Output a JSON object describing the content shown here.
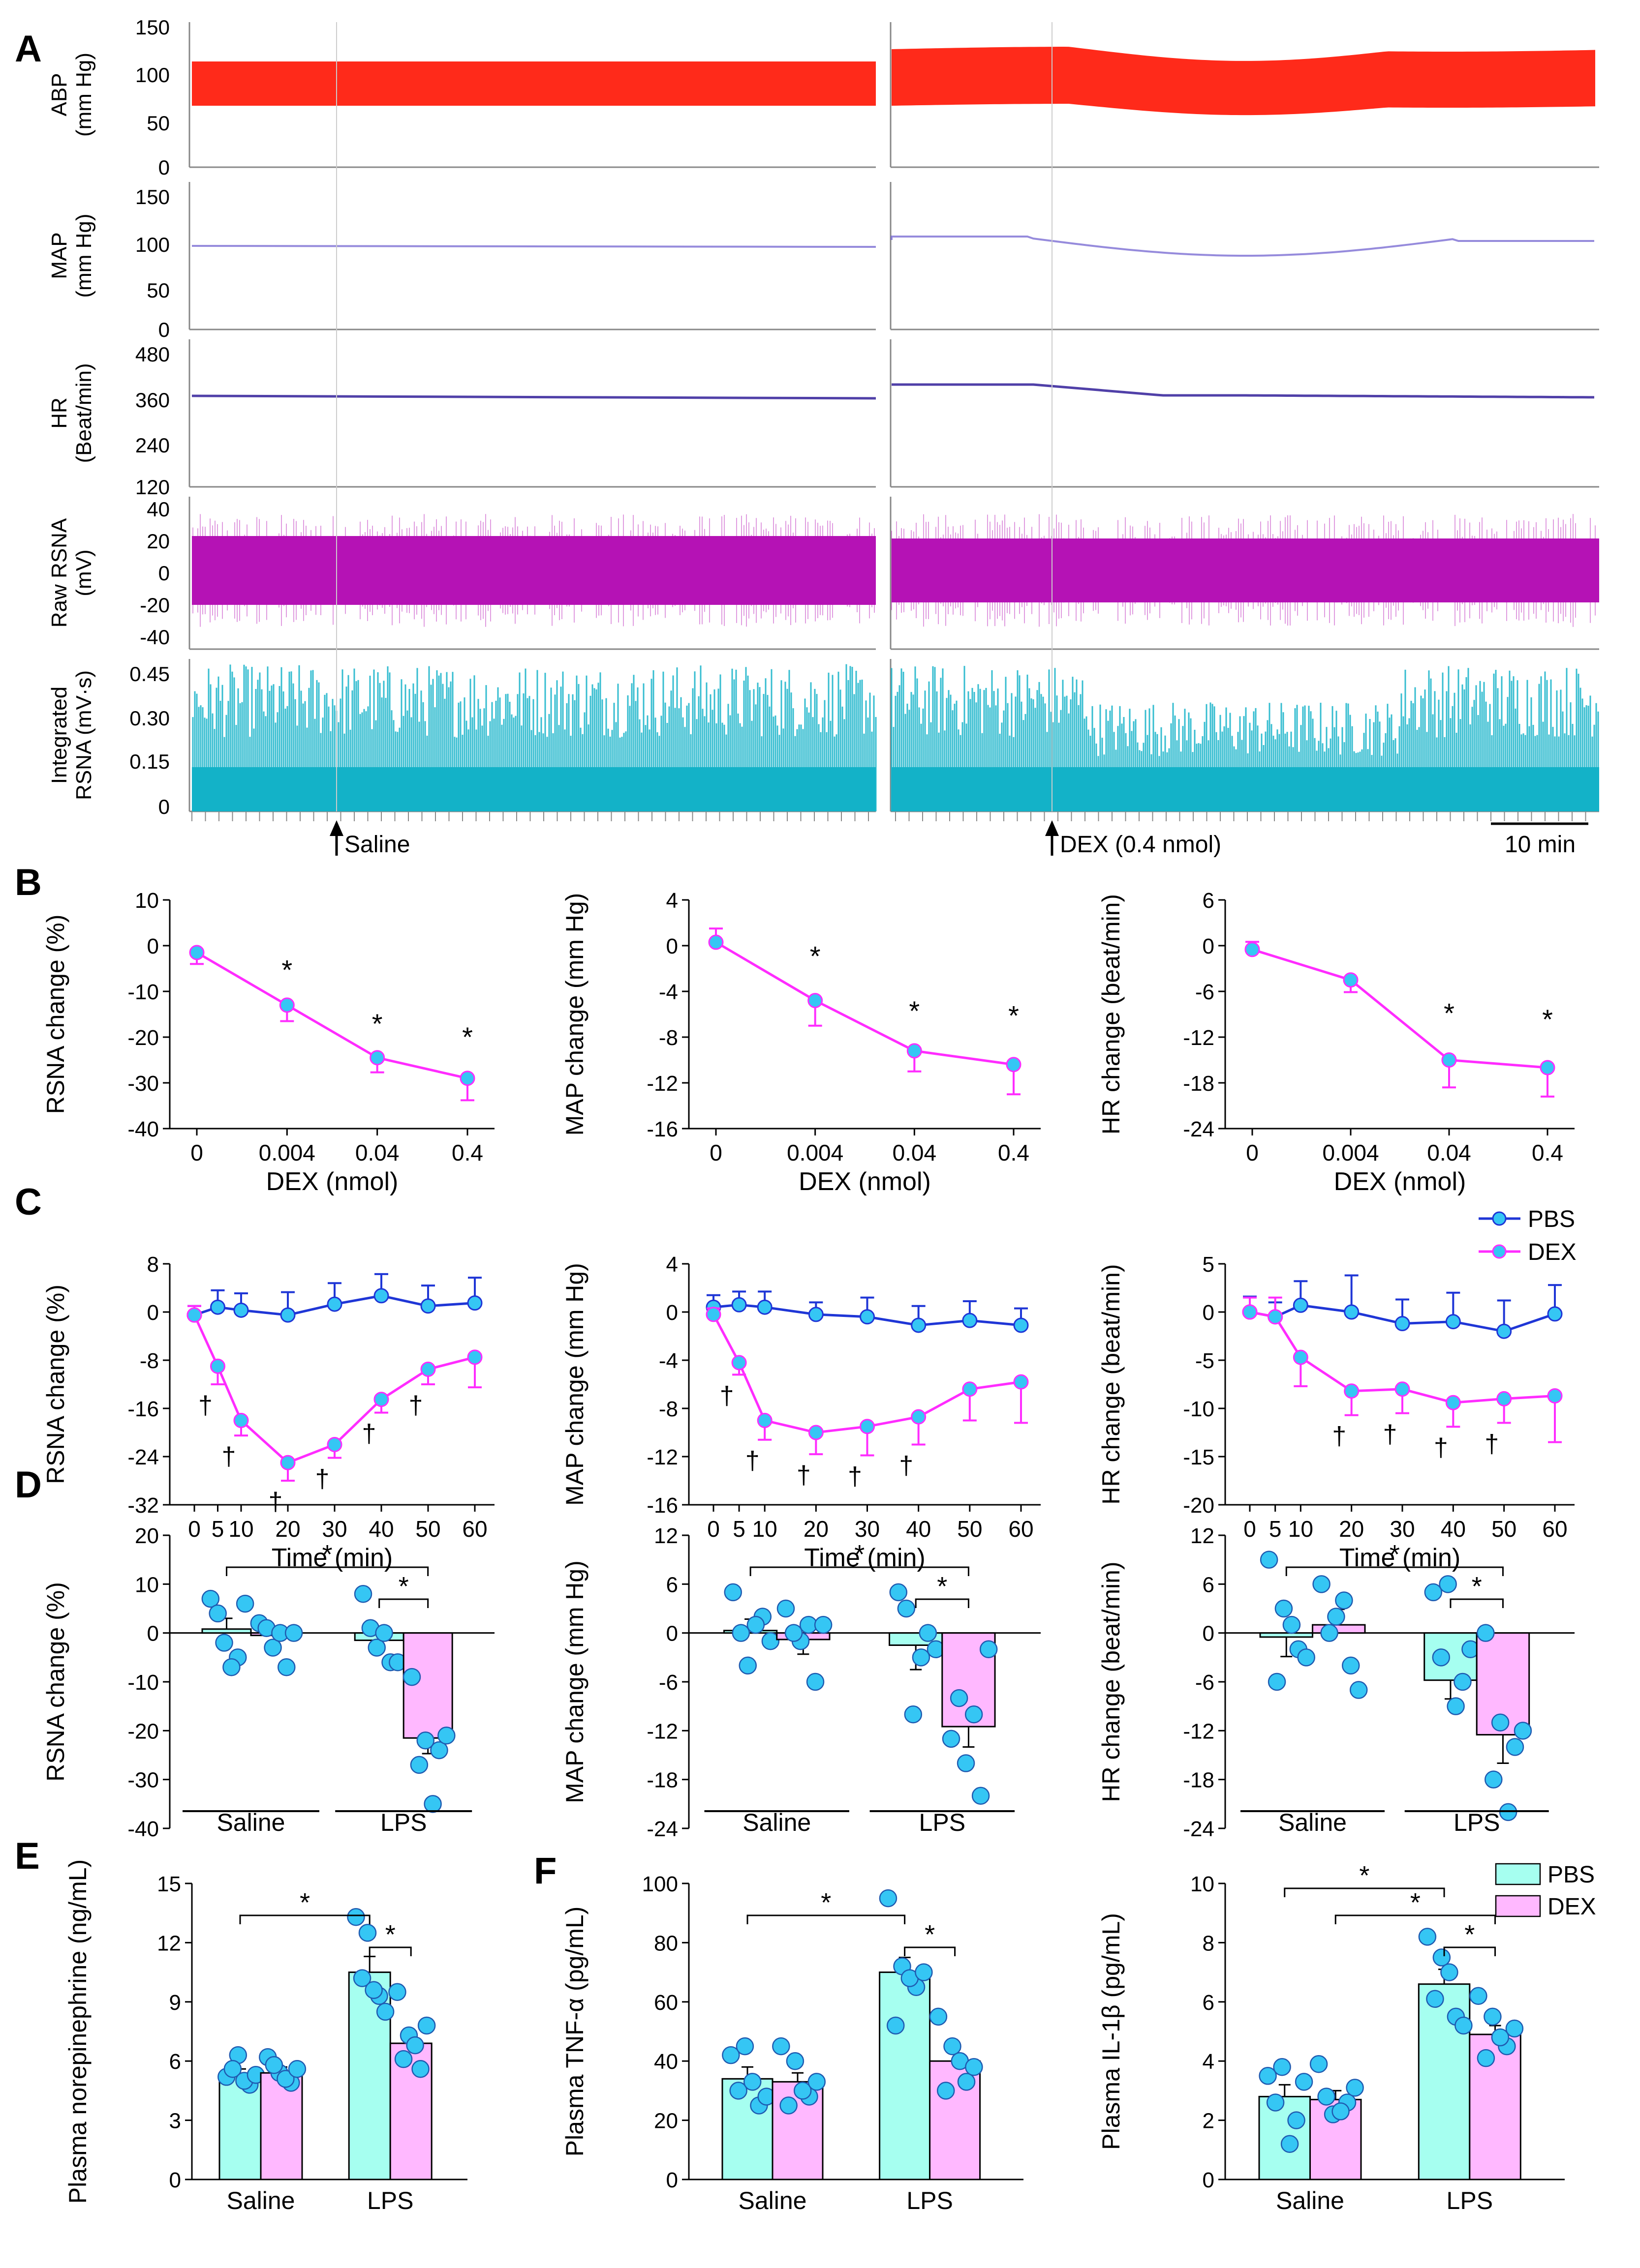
{
  "figure": {
    "panel_letters": {
      "A": "A",
      "B": "B",
      "C": "C",
      "D": "D",
      "E": "E",
      "F": "F"
    },
    "colors": {
      "abp": "#ff2a1a",
      "map": "#6a5acd",
      "hr": "#5040a8",
      "raw_rsna": "#b512b5",
      "int_rsna": "#13b2c8",
      "pbs_line": "#1f36d6",
      "dex_line": "#ff2cff",
      "marker_fill": "#35c6f4",
      "pbs_bar": "#a6fff0",
      "dex_bar": "#ffb8ff"
    },
    "legend_lines": {
      "pbs": "PBS",
      "dex": "DEX"
    },
    "legend_bars": {
      "pbs": "PBS",
      "dex": "DEX"
    }
  },
  "panelA": {
    "traces": [
      {
        "key": "abp",
        "label_lines": [
          "ABP",
          "(mm Hg)"
        ],
        "ticks": [
          "150",
          "100",
          "50",
          "0"
        ],
        "ylim": [
          0,
          150
        ]
      },
      {
        "key": "map",
        "label_lines": [
          "MAP",
          "(mm Hg)"
        ],
        "ticks": [
          "150",
          "100",
          "50",
          "0"
        ],
        "ylim": [
          0,
          150
        ]
      },
      {
        "key": "hr",
        "label_lines": [
          "HR",
          "(Beat/min)"
        ],
        "ticks": [
          "480",
          "360",
          "240",
          "120"
        ],
        "ylim": [
          120,
          480
        ]
      },
      {
        "key": "raw_rsna",
        "label_lines": [
          "Raw RSNA",
          "(mV)"
        ],
        "ticks": [
          "40",
          "20",
          "0",
          "-20",
          "-40"
        ],
        "ylim": [
          -40,
          40
        ]
      },
      {
        "key": "int_rsna",
        "label_lines": [
          "Integrated",
          "RSNA (mV·s)"
        ],
        "ticks": [
          "0.45",
          "0.30",
          "0.15",
          "0"
        ],
        "ylim": [
          0,
          0.45
        ]
      }
    ],
    "markers": {
      "saline": "Saline",
      "dex": "DEX (0.4 nmol)"
    },
    "scalebar": "10 min"
  },
  "chart_data": [
    {
      "panel": "B",
      "type": "line",
      "xlabel": "DEX (nmol)",
      "ylabel": "RSNA change (%)",
      "categories": [
        "0",
        "0.004",
        "0.04",
        "0.4"
      ],
      "ylim": [
        -40,
        10
      ],
      "yticks": [
        "10",
        "0",
        "-10",
        "-20",
        "-30",
        "-40"
      ],
      "series": [
        {
          "name": "DEX",
          "values": [
            -1.5,
            -13,
            -24.5,
            -29
          ],
          "errors": [
            2.5,
            3.5,
            3.2,
            4.8
          ]
        }
      ],
      "annotations": [
        "",
        "*",
        "*",
        "*"
      ]
    },
    {
      "panel": "B",
      "type": "line",
      "xlabel": "DEX (nmol)",
      "ylabel": "MAP change (mm Hg)",
      "categories": [
        "0",
        "0.004",
        "0.04",
        "0.4"
      ],
      "ylim": [
        -16,
        4
      ],
      "yticks": [
        "4",
        "0",
        "-4",
        "-8",
        "-12",
        "-16"
      ],
      "series": [
        {
          "name": "DEX",
          "values": [
            0.3,
            -4.8,
            -9.2,
            -10.4
          ],
          "errors": [
            1.2,
            2.2,
            1.8,
            2.6
          ]
        }
      ],
      "annotations": [
        "",
        "*",
        "*",
        "*"
      ]
    },
    {
      "panel": "B",
      "type": "line",
      "xlabel": "DEX (nmol)",
      "ylabel": "HR change (beat/min)",
      "categories": [
        "0",
        "0.004",
        "0.04",
        "0.4"
      ],
      "ylim": [
        -24,
        6
      ],
      "yticks": [
        "6",
        "0",
        "-6",
        "-12",
        "-18",
        "-24"
      ],
      "series": [
        {
          "name": "DEX",
          "values": [
            -0.5,
            -4.5,
            -15,
            -16
          ],
          "errors": [
            1,
            1.6,
            3.6,
            3.8
          ]
        }
      ],
      "annotations": [
        "",
        "",
        "*",
        "*"
      ]
    },
    {
      "panel": "C",
      "type": "line",
      "xlabel": "Time (min)",
      "ylabel": "RSNA change (%)",
      "x": [
        0,
        5,
        10,
        20,
        30,
        40,
        50,
        60
      ],
      "ylim": [
        -32,
        8
      ],
      "yticks": [
        "8",
        "0",
        "-8",
        "-16",
        "-24",
        "-32"
      ],
      "series": [
        {
          "name": "PBS",
          "values": [
            -0.5,
            0.8,
            0.3,
            -0.5,
            1.3,
            2.7,
            1,
            1.5
          ],
          "errors": [
            1.5,
            2.8,
            2.8,
            3.8,
            3.5,
            3.6,
            3.4,
            4.2
          ]
        },
        {
          "name": "DEX",
          "values": [
            -0.5,
            -9,
            -18,
            -25,
            -22,
            -14.5,
            -9.5,
            -7.5
          ],
          "errors": [
            1.5,
            3,
            2.5,
            3,
            2.2,
            2.2,
            2.5,
            5
          ]
        }
      ],
      "annotations": [
        "",
        "†",
        "†",
        "†",
        "†",
        "†",
        "†",
        ""
      ]
    },
    {
      "panel": "C",
      "type": "line",
      "xlabel": "Time (min)",
      "ylabel": "MAP change (mm Hg)",
      "x": [
        0,
        5,
        10,
        20,
        30,
        40,
        50,
        60
      ],
      "ylim": [
        -16,
        4
      ],
      "yticks": [
        "4",
        "0",
        "-4",
        "-8",
        "-12",
        "-16"
      ],
      "series": [
        {
          "name": "PBS",
          "values": [
            0.4,
            0.6,
            0.4,
            -0.2,
            -0.4,
            -1.1,
            -0.7,
            -1.1
          ],
          "errors": [
            1,
            1.1,
            1.3,
            1,
            1.6,
            1.6,
            1.6,
            1.4
          ]
        },
        {
          "name": "DEX",
          "values": [
            -0.2,
            -4.2,
            -9,
            -10,
            -9.5,
            -8.7,
            -6.4,
            -5.8
          ],
          "errors": [
            0.5,
            1,
            1.6,
            1.8,
            2.4,
            2.3,
            2.6,
            3.4
          ]
        }
      ],
      "annotations": [
        "",
        "†",
        "†",
        "†",
        "†",
        "†",
        "",
        ""
      ]
    },
    {
      "panel": "C",
      "type": "line",
      "xlabel": "Time (min)",
      "ylabel": "HR change (beat/min)",
      "x": [
        0,
        5,
        10,
        20,
        30,
        40,
        50,
        60
      ],
      "ylim": [
        -20,
        5
      ],
      "yticks": [
        "5",
        "0",
        "-5",
        "-10",
        "-15",
        "-20"
      ],
      "series": [
        {
          "name": "PBS",
          "values": [
            0,
            -0.5,
            0.7,
            0,
            -1.2,
            -1,
            -2,
            -0.2
          ],
          "errors": [
            1.6,
            1.5,
            2.5,
            3.8,
            2.5,
            3,
            3.2,
            3
          ]
        },
        {
          "name": "DEX",
          "values": [
            0,
            -0.5,
            -4.7,
            -8.2,
            -8,
            -9.4,
            -9,
            -8.7
          ],
          "errors": [
            1.5,
            2,
            3,
            2.5,
            2.5,
            2.5,
            2.5,
            4.8
          ]
        }
      ],
      "annotations": [
        "",
        "",
        "",
        "†",
        "†",
        "†",
        "†",
        ""
      ]
    },
    {
      "panel": "D",
      "type": "bar",
      "ylabel": "RSNA change (%)",
      "categories": [
        "Saline",
        "LPS"
      ],
      "ylim": [
        -40,
        20
      ],
      "yticks": [
        "20",
        "10",
        "0",
        "-10",
        "-20",
        "-30",
        "-40"
      ],
      "series": [
        {
          "name": "PBS",
          "values": [
            0.8,
            -1.5
          ],
          "errors": [
            2.2,
            2
          ],
          "points": [
            [
              7,
              -2,
              -5,
              4,
              -7,
              6
            ],
            [
              8,
              -3,
              -6,
              1,
              0,
              -6
            ]
          ]
        },
        {
          "name": "DEX",
          "values": [
            -0.5,
            -21.5
          ],
          "errors": [
            2,
            3.2
          ],
          "points": [
            [
              2,
              -3,
              -7,
              1,
              0,
              0
            ],
            [
              -9,
              -22,
              -24,
              -27,
              -35,
              -21
            ]
          ]
        }
      ],
      "brackets": [
        {
          "label": "*",
          "from": "Saline-PBS",
          "to": "LPS-DEX",
          "level": 1
        },
        {
          "label": "*",
          "from": "LPS-PBS",
          "to": "LPS-DEX",
          "level": 0
        }
      ]
    },
    {
      "panel": "D",
      "type": "bar",
      "ylabel": "MAP change (mm Hg)",
      "categories": [
        "Saline",
        "LPS"
      ],
      "ylim": [
        -24,
        12
      ],
      "yticks": [
        "12",
        "6",
        "0",
        "-6",
        "-12",
        "-18",
        "-24"
      ],
      "series": [
        {
          "name": "PBS",
          "values": [
            0.3,
            -1.5
          ],
          "errors": [
            1.4,
            3
          ],
          "points": [
            [
              5,
              -4,
              2,
              0,
              1,
              -1
            ],
            [
              5,
              -10,
              0,
              3,
              -3,
              -2
            ]
          ]
        },
        {
          "name": "DEX",
          "values": [
            -0.8,
            -11.5
          ],
          "errors": [
            1.8,
            2.5
          ],
          "points": [
            [
              3,
              -1,
              -6,
              0,
              1,
              1
            ],
            [
              -13,
              -16,
              -20,
              -8,
              -10,
              -2
            ]
          ]
        }
      ],
      "brackets": [
        {
          "label": "*",
          "from": "Saline-PBS",
          "to": "LPS-DEX",
          "level": 1
        },
        {
          "label": "*",
          "from": "LPS-PBS",
          "to": "LPS-DEX",
          "level": 0
        }
      ]
    },
    {
      "panel": "D",
      "type": "bar",
      "ylabel": "HR change (beat/min)",
      "categories": [
        "Saline",
        "LPS"
      ],
      "ylim": [
        -24,
        12
      ],
      "yticks": [
        "12",
        "6",
        "0",
        "-6",
        "-12",
        "-18",
        "-24"
      ],
      "series": [
        {
          "name": "PBS",
          "values": [
            -0.5,
            -5.8
          ],
          "errors": [
            2.4,
            2.3
          ],
          "points": [
            [
              9,
              3,
              -2,
              -6,
              1,
              -3
            ],
            [
              5,
              6,
              -6,
              -3,
              -9,
              -2
            ]
          ]
        },
        {
          "name": "DEX",
          "values": [
            1,
            -12.5
          ],
          "errors": [
            1.9,
            3.5
          ],
          "points": [
            [
              6,
              2,
              -4,
              0,
              4,
              -7
            ],
            [
              0,
              -11,
              -14,
              -18,
              -22,
              -12
            ]
          ]
        }
      ],
      "brackets": [
        {
          "label": "*",
          "from": "Saline-PBS",
          "to": "LPS-DEX",
          "level": 1
        },
        {
          "label": "*",
          "from": "LPS-PBS",
          "to": "LPS-DEX",
          "level": 0
        }
      ]
    },
    {
      "panel": "E",
      "type": "bar",
      "ylabel": "Plasma norepinephrine (ng/mL)",
      "categories": [
        "Saline",
        "LPS"
      ],
      "ylim": [
        0,
        15
      ],
      "yticks": [
        "15",
        "12",
        "9",
        "6",
        "3",
        "0"
      ],
      "series": [
        {
          "name": "PBS",
          "values": [
            5.3,
            10.5
          ],
          "errors": [
            0.3,
            0.8
          ],
          "points": [
            [
              5.2,
              6.3,
              4.8,
              5.6,
              5.0,
              5.3
            ],
            [
              13.3,
              12.5,
              9.3,
              10.2,
              9.6,
              8.5
            ]
          ]
        },
        {
          "name": "DEX",
          "values": [
            5.4,
            6.9
          ],
          "errors": [
            0.3,
            0.6
          ],
          "points": [
            [
              6.2,
              5.4,
              4.9,
              5.8,
              5.1,
              5.6
            ],
            [
              9.5,
              7.3,
              5.6,
              6.1,
              6.8,
              7.8
            ]
          ]
        }
      ],
      "brackets": [
        {
          "label": "*",
          "from": "Saline-PBS",
          "to": "LPS-PBS",
          "level": 1
        },
        {
          "label": "*",
          "from": "LPS-PBS",
          "to": "LPS-DEX",
          "level": 0
        }
      ]
    },
    {
      "panel": "F",
      "type": "bar",
      "ylabel": "Plasma TNF-α (pg/mL)",
      "categories": [
        "Saline",
        "LPS"
      ],
      "ylim": [
        0,
        100
      ],
      "yticks": [
        "100",
        "80",
        "60",
        "40",
        "20",
        "0"
      ],
      "series": [
        {
          "name": "PBS",
          "values": [
            34,
            70
          ],
          "errors": [
            4,
            5
          ],
          "points": [
            [
              42,
              45,
              25,
              30,
              33,
              28
            ],
            [
              95,
              72,
              65,
              52,
              68,
              70
            ]
          ]
        },
        {
          "name": "DEX",
          "values": [
            33,
            40
          ],
          "errors": [
            3,
            4
          ],
          "points": [
            [
              45,
              40,
              28,
              25,
              30,
              33
            ],
            [
              55,
              45,
              33,
              30,
              40,
              38
            ]
          ]
        }
      ],
      "brackets": [
        {
          "label": "*",
          "from": "Saline-PBS",
          "to": "LPS-PBS",
          "level": 1
        },
        {
          "label": "*",
          "from": "LPS-PBS",
          "to": "LPS-DEX",
          "level": 0
        }
      ]
    },
    {
      "panel": "F",
      "type": "bar",
      "ylabel": "Plasma IL-1β (pg/mL)",
      "categories": [
        "Saline",
        "LPS"
      ],
      "ylim": [
        0,
        10
      ],
      "yticks": [
        "10",
        "8",
        "6",
        "4",
        "2",
        "0"
      ],
      "series": [
        {
          "name": "PBS",
          "values": [
            2.8,
            6.6
          ],
          "errors": [
            0.4,
            0.5
          ],
          "points": [
            [
              3.5,
              3.8,
              2.0,
              2.6,
              1.2,
              3.3
            ],
            [
              8.2,
              7.5,
              5.5,
              6.1,
              7.0,
              5.2
            ]
          ]
        },
        {
          "name": "DEX",
          "values": [
            2.7,
            4.9
          ],
          "errors": [
            0.3,
            0.3
          ],
          "points": [
            [
              3.9,
              2.2,
              2.6,
              2.8,
              2.3,
              3.1
            ],
            [
              6.2,
              5.5,
              4.5,
              4.1,
              4.8,
              5.1
            ]
          ]
        }
      ],
      "brackets": [
        {
          "label": "*",
          "from": "Saline-PBS",
          "to": "LPS-PBS",
          "level": 2
        },
        {
          "label": "*",
          "from": "Saline-DEX",
          "to": "LPS-DEX",
          "level": 1
        },
        {
          "label": "*",
          "from": "LPS-PBS",
          "to": "LPS-DEX",
          "level": 0
        }
      ]
    }
  ]
}
